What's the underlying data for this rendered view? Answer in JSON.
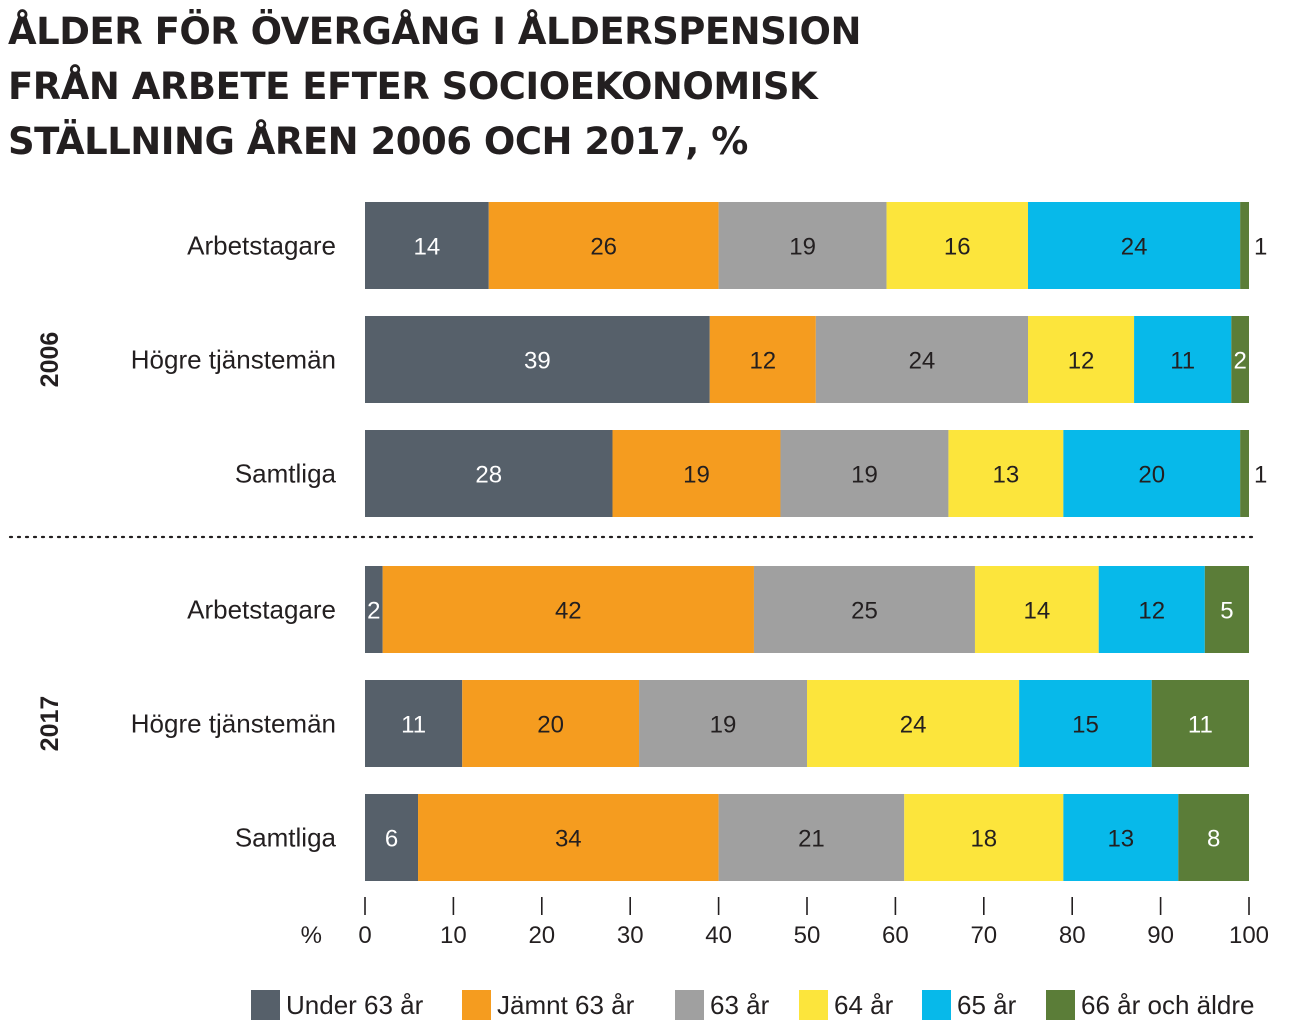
{
  "chart_data": {
    "type": "bar",
    "orientation": "horizontal",
    "stacked": true,
    "title_lines": [
      "ÅLDER FÖR ÖVERGÅNG I ÅLDERSPENSION",
      "FRÅN ARBETE EFTER SOCIOEKONOMISK",
      "STÄLLNING ÅREN 2006 OCH 2017, %"
    ],
    "xlabel": "%",
    "xlim": [
      0,
      100
    ],
    "xticks": [
      0,
      10,
      20,
      30,
      40,
      50,
      60,
      70,
      80,
      90,
      100
    ],
    "legend_position": "bottom",
    "series": [
      {
        "name": "Under 63 år",
        "color": "#56606a",
        "label_color": "#ffffff"
      },
      {
        "name": "Jämnt 63 år",
        "color": "#f59c1f",
        "label_color": "#231f20"
      },
      {
        "name": "63 år",
        "color": "#a0a0a0",
        "label_color": "#231f20"
      },
      {
        "name": "64 år",
        "color": "#fce53c",
        "label_color": "#231f20"
      },
      {
        "name": "65 år",
        "color": "#07b9ea",
        "label_color": "#231f20"
      },
      {
        "name": "66 år och äldre",
        "color": "#5b7d38",
        "label_color": "#ffffff"
      }
    ],
    "groups": [
      {
        "label": "2006",
        "rows": [
          {
            "label": "Arbetstagare",
            "values": [
              14,
              26,
              19,
              16,
              24,
              1
            ]
          },
          {
            "label": "Högre tjänstemän",
            "values": [
              39,
              12,
              24,
              12,
              11,
              2
            ]
          },
          {
            "label": "Samtliga",
            "values": [
              28,
              19,
              19,
              13,
              20,
              1
            ]
          }
        ]
      },
      {
        "label": "2017",
        "rows": [
          {
            "label": "Arbetstagare",
            "values": [
              2,
              42,
              25,
              14,
              12,
              5
            ]
          },
          {
            "label": "Högre tjänstemän",
            "values": [
              11,
              20,
              19,
              24,
              15,
              11
            ]
          },
          {
            "label": "Samtliga",
            "values": [
              6,
              34,
              21,
              18,
              13,
              8
            ]
          }
        ]
      }
    ]
  }
}
